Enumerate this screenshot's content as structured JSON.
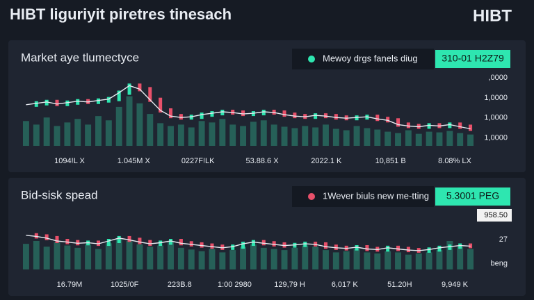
{
  "header": {
    "title": "HIBT liguriyit piretres tinesach",
    "logo": "HIBT"
  },
  "chart_data": [
    {
      "type": "candle_volume",
      "title": "Market aye tlumectyce",
      "legend_label": "Mewoy drgs fanels diug",
      "legend_color": "#2ee6b0",
      "badge": "310-01 H2Z79",
      "badge_color": "#2ee6b0",
      "x_labels": [
        "1094!L X",
        "1.045M X",
        "0227F!LK",
        "53.88.6 X",
        "2022.1 K",
        "10,851 B",
        "8.08% LX"
      ],
      "right_labels": [
        ",0000",
        "1,0000",
        "1,0000",
        "1,0000"
      ],
      "ylim": [
        0,
        100
      ],
      "up_color": "#2ee6b0",
      "down_color": "#e8506a",
      "bar_color": "#2fa88a",
      "line_color": "#e6e9ef",
      "line": [
        58,
        60,
        62,
        59,
        61,
        63,
        62,
        64,
        66,
        75,
        85,
        80,
        65,
        50,
        42,
        40,
        41,
        44,
        46,
        48,
        47,
        45,
        46,
        48,
        47,
        44,
        42,
        41,
        43,
        42,
        40,
        39,
        40,
        41,
        38,
        36,
        30,
        28,
        27,
        29,
        28,
        30,
        27,
        24
      ],
      "values": [
        35,
        30,
        40,
        28,
        33,
        38,
        30,
        42,
        36,
        55,
        70,
        60,
        45,
        32,
        28,
        30,
        26,
        35,
        33,
        38,
        30,
        28,
        34,
        36,
        30,
        27,
        25,
        28,
        26,
        30,
        24,
        22,
        28,
        25,
        23,
        20,
        18,
        22,
        17,
        20,
        19,
        21,
        18,
        16
      ]
    },
    {
      "type": "candle_volume",
      "title": "Bid-sisk spead",
      "legend_label": "1Wever biuls new me-tting",
      "legend_color": "#e8506a",
      "badge": "5.3001 PEG",
      "badge_color": "#2ee6b0",
      "x_labels": [
        "16.79M",
        "1025/0F",
        "223B.8",
        "1:00 2980",
        "129,79 H",
        "6,017 K",
        "51.20H",
        "9,949 K"
      ],
      "right_labels": [
        "958.50",
        "27",
        "beng"
      ],
      "ylim": [
        0,
        100
      ],
      "up_color": "#2ee6b0",
      "down_color": "#e8506a",
      "bar_color": "#2fa88a",
      "line_color": "#e6e9ef",
      "line": [
        60,
        58,
        55,
        50,
        48,
        46,
        47,
        45,
        50,
        55,
        52,
        48,
        45,
        47,
        50,
        46,
        44,
        42,
        40,
        38,
        40,
        45,
        48,
        46,
        44,
        42,
        43,
        45,
        44,
        40,
        38,
        37,
        39,
        36,
        35,
        38,
        36,
        34,
        33,
        35,
        38,
        40,
        42,
        41
      ],
      "values": [
        45,
        50,
        40,
        48,
        42,
        38,
        44,
        36,
        46,
        55,
        50,
        44,
        40,
        42,
        48,
        38,
        35,
        32,
        36,
        30,
        34,
        40,
        44,
        38,
        36,
        34,
        38,
        42,
        40,
        34,
        30,
        32,
        36,
        30,
        28,
        32,
        30,
        26,
        28,
        30,
        34,
        50,
        40,
        36
      ]
    }
  ]
}
